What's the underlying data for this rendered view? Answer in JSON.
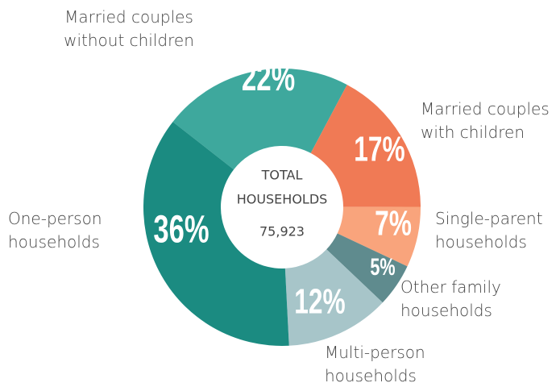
{
  "chart_data": {
    "type": "donut",
    "categories": [
      "Married couples\nwithout children",
      "Married couples\nwith children",
      "Single-parent\nhouseholds",
      "Other family\nhouseholds",
      "Multi-person\nhouseholds",
      "One-person\nhouseholds"
    ],
    "values": [
      22,
      17,
      7,
      5,
      12,
      36
    ],
    "value_labels": [
      "22%",
      "17%",
      "7%",
      "5%",
      "12%",
      "36%"
    ],
    "colors": [
      "#3ea89d",
      "#f07a55",
      "#f9a47c",
      "#5f8b8e",
      "#a7c5c9",
      "#1b8b81"
    ],
    "center_label": [
      "TOTAL",
      "HOUSEHOLDS",
      "75,923"
    ]
  }
}
